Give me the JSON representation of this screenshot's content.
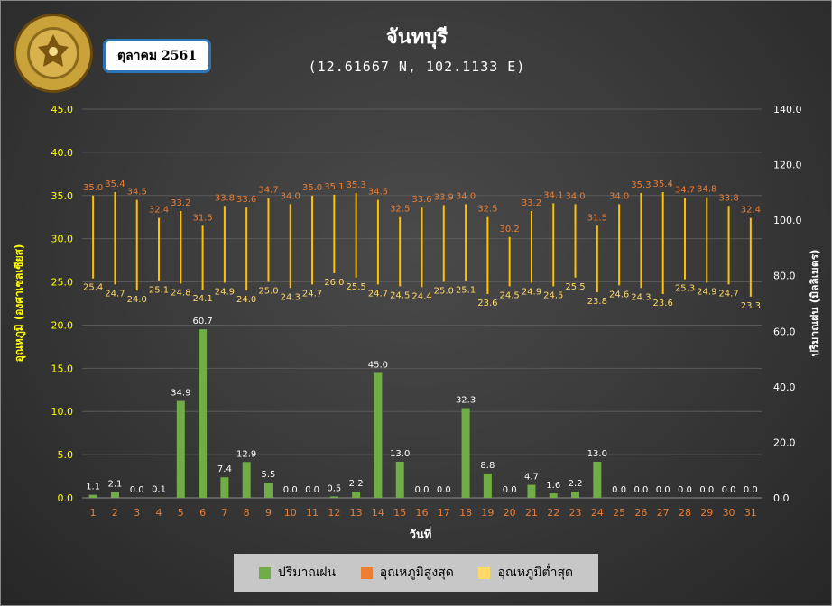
{
  "header": {
    "title": "จันทบุรี",
    "subtitle": "(12.61667 N, 102.1133 E)",
    "month_label": "ตุลาคม 2561",
    "logo_text": "กรมอุตุนิยมวิทยา · METEOROLOGICAL DEPARTMENT"
  },
  "legend": {
    "rain": "ปริมาณฝน",
    "tmax": "อุณหภูมิสูงสุด",
    "tmin": "อุณหภูมิต่ำสุด"
  },
  "colors": {
    "rain": "#70ad47",
    "tmax_label": "#ed7d31",
    "tmin_label": "#ffd966",
    "range_line": "#ffc000",
    "left_axis": "#ffff00",
    "right_axis": "#ffffff",
    "x_ticks": "#ed7d31",
    "legend_rain": "#70ad47",
    "legend_tmax": "#ed7d31",
    "legend_tmin": "#ffd966"
  },
  "chart_data": {
    "type": "bar",
    "x": [
      1,
      2,
      3,
      4,
      5,
      6,
      7,
      8,
      9,
      10,
      11,
      12,
      13,
      14,
      15,
      16,
      17,
      18,
      19,
      20,
      21,
      22,
      23,
      24,
      25,
      26,
      27,
      28,
      29,
      30,
      31
    ],
    "x_ticks": [
      "1",
      "2",
      "3",
      "4",
      "5",
      "6",
      "7",
      "8",
      "9",
      "10",
      "11",
      "12",
      "13",
      "14",
      "15",
      "16",
      "17",
      "18",
      "19",
      "20",
      "21",
      "22",
      "23",
      "24",
      "25",
      "26",
      "27",
      "28",
      "29",
      "30",
      "31"
    ],
    "xlabel": "วันที่",
    "ylabel_left": "อุณหภูมิ (องศาเซลเซียส)",
    "ylabel_right": "ปริมาณฝน (มิลลิเมตร)",
    "ylim_left": [
      0,
      45
    ],
    "ylim_right": [
      0,
      140
    ],
    "left_ticks": [
      "0.0",
      "5.0",
      "10.0",
      "15.0",
      "20.0",
      "25.0",
      "30.0",
      "35.0",
      "40.0",
      "45.0"
    ],
    "right_ticks": [
      "0.0",
      "20.0",
      "40.0",
      "60.0",
      "80.0",
      "100.0",
      "120.0",
      "140.0"
    ],
    "grid": true,
    "series": [
      {
        "name": "ปริมาณฝน",
        "kind": "bar",
        "axis": "right",
        "values": [
          1.1,
          2.1,
          0.0,
          0.1,
          34.9,
          60.7,
          7.4,
          12.9,
          5.5,
          0.0,
          0.0,
          0.5,
          2.2,
          45.0,
          13.0,
          0.0,
          0.0,
          32.3,
          8.8,
          0.0,
          4.7,
          1.6,
          2.2,
          13.0,
          0.0,
          0.0,
          0.0,
          0.0,
          0.0,
          0.0,
          0.0
        ],
        "labels": [
          "1.1",
          "2.1",
          "0.0",
          "0.1",
          "34.9",
          "60.7",
          "7.4",
          "12.9",
          "5.5",
          "0.0",
          "0.0",
          "0.5",
          "2.2",
          "45.0",
          "13.0",
          "0.0",
          "0.0",
          "32.3",
          "8.8",
          "0.0",
          "4.7",
          "1.6",
          "2.2",
          "13.0",
          "0.0",
          "0.0",
          "0.0",
          "0.0",
          "0.0",
          "0.0",
          "0.0"
        ]
      },
      {
        "name": "อุณหภูมิสูงสุด",
        "kind": "range-high",
        "axis": "left",
        "values": [
          35.0,
          35.4,
          34.5,
          32.4,
          33.2,
          31.5,
          33.8,
          33.6,
          34.7,
          34.0,
          35.0,
          35.1,
          35.3,
          34.5,
          32.5,
          33.6,
          33.9,
          34.0,
          32.5,
          30.2,
          33.2,
          34.1,
          34.0,
          31.5,
          34.0,
          35.3,
          35.4,
          34.7,
          34.8,
          33.8,
          32.4
        ],
        "labels": [
          "35.0",
          "35.4",
          "34.5",
          "32.4",
          "33.2",
          "31.5",
          "33.8",
          "33.6",
          "34.7",
          "34.0",
          "35.0",
          "35.1",
          "35.3",
          "34.5",
          "32.5",
          "33.6",
          "33.9",
          "34.0",
          "32.5",
          "30.2",
          "33.2",
          "34.1",
          "34.0",
          "31.5",
          "34.0",
          "35.3",
          "35.4",
          "34.7",
          "34.8",
          "33.8",
          "32.4"
        ]
      },
      {
        "name": "อุณหภูมิต่ำสุด",
        "kind": "range-low",
        "axis": "left",
        "values": [
          25.4,
          24.7,
          24.0,
          25.1,
          24.8,
          24.1,
          24.9,
          24.0,
          25.0,
          24.3,
          24.7,
          26.0,
          25.5,
          24.7,
          24.5,
          24.4,
          25.0,
          25.1,
          23.6,
          24.5,
          24.9,
          24.5,
          25.5,
          23.8,
          24.6,
          24.3,
          23.6,
          25.3,
          24.9,
          24.7,
          23.3
        ],
        "labels": [
          "25.4",
          "24.7",
          "24.0",
          "25.1",
          "24.8",
          "24.1",
          "24.9",
          "24.0",
          "25.0",
          "24.3",
          "24.7",
          "26.0",
          "25.5",
          "24.7",
          "24.5",
          "24.4",
          "25.0",
          "25.1",
          "23.6",
          "24.5",
          "24.9",
          "24.5",
          "25.5",
          "23.8",
          "24.6",
          "24.3",
          "23.6",
          "25.3",
          "24.9",
          "24.7",
          "23.3"
        ]
      }
    ]
  }
}
